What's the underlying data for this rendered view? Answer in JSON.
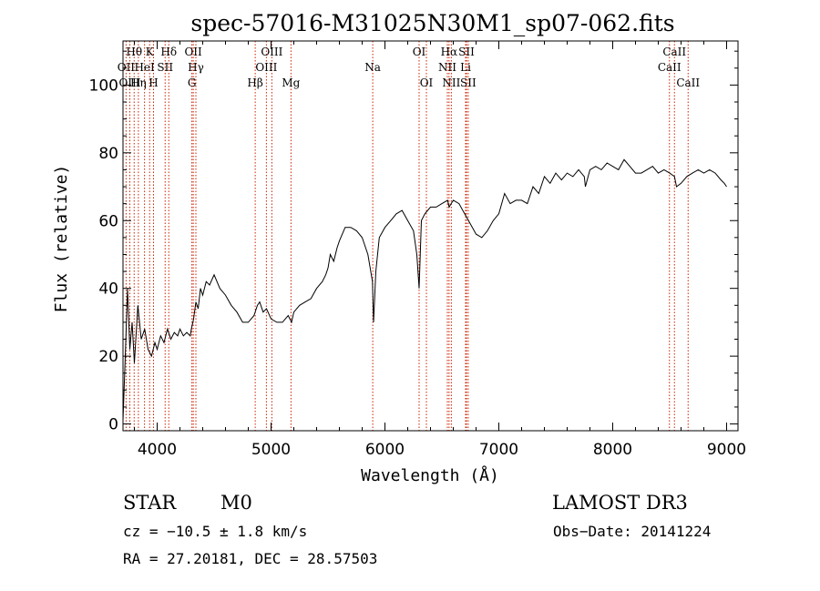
{
  "chart_data": {
    "type": "line",
    "title": "spec-57016-M31025N30M1_sp07-062.fits",
    "xlabel": "Wavelength (Å)",
    "ylabel": "Flux (relative)",
    "xlim": [
      3700,
      9100
    ],
    "ylim": [
      -2,
      113
    ],
    "xticks": [
      4000,
      5000,
      6000,
      7000,
      8000,
      9000
    ],
    "yticks": [
      0,
      20,
      40,
      60,
      80,
      100
    ],
    "grid": false,
    "series": [
      {
        "name": "spectrum",
        "x": [
          3700,
          3720,
          3740,
          3760,
          3780,
          3800,
          3830,
          3860,
          3890,
          3920,
          3950,
          3980,
          4000,
          4030,
          4060,
          4090,
          4120,
          4150,
          4180,
          4200,
          4230,
          4260,
          4290,
          4300,
          4320,
          4340,
          4360,
          4380,
          4400,
          4430,
          4460,
          4500,
          4550,
          4600,
          4650,
          4700,
          4750,
          4800,
          4850,
          4880,
          4900,
          4930,
          4960,
          5000,
          5050,
          5100,
          5150,
          5180,
          5200,
          5250,
          5300,
          5350,
          5400,
          5450,
          5480,
          5500,
          5520,
          5550,
          5580,
          5600,
          5650,
          5700,
          5750,
          5800,
          5850,
          5890,
          5900,
          5920,
          5950,
          6000,
          6050,
          6100,
          6150,
          6200,
          6250,
          6280,
          6300,
          6320,
          6350,
          6400,
          6450,
          6500,
          6550,
          6563,
          6600,
          6650,
          6700,
          6750,
          6800,
          6850,
          6900,
          6950,
          7000,
          7050,
          7100,
          7150,
          7200,
          7250,
          7300,
          7350,
          7400,
          7450,
          7500,
          7550,
          7600,
          7650,
          7700,
          7750,
          7760,
          7800,
          7850,
          7900,
          7950,
          8000,
          8050,
          8100,
          8150,
          8200,
          8250,
          8300,
          8350,
          8400,
          8450,
          8500,
          8542,
          8560,
          8600,
          8650,
          8700,
          8750,
          8800,
          8850,
          8900,
          8950,
          8980,
          9000
        ],
        "values": [
          1,
          20,
          40,
          22,
          30,
          18,
          35,
          25,
          28,
          22,
          20,
          24,
          22,
          26,
          24,
          28,
          25,
          27,
          26,
          28,
          26,
          27,
          26,
          28,
          31,
          36,
          34,
          40,
          38,
          42,
          41,
          44,
          40,
          38,
          35,
          33,
          30,
          30,
          32,
          35,
          36,
          33,
          34,
          31,
          30,
          30,
          32,
          30,
          33,
          35,
          36,
          37,
          40,
          42,
          44,
          46,
          50,
          48,
          52,
          54,
          58,
          58,
          57,
          55,
          50,
          42,
          30,
          45,
          55,
          58,
          60,
          62,
          63,
          60,
          57,
          50,
          40,
          60,
          62,
          64,
          64,
          65,
          66,
          64,
          66,
          65,
          62,
          59,
          56,
          55,
          57,
          60,
          62,
          68,
          65,
          66,
          66,
          65,
          70,
          68,
          73,
          71,
          74,
          72,
          74,
          73,
          75,
          73,
          70,
          75,
          76,
          75,
          77,
          76,
          75,
          78,
          76,
          74,
          74,
          75,
          76,
          74,
          75,
          74,
          73,
          70,
          71,
          73,
          74,
          75,
          74,
          75,
          74,
          72,
          71,
          70
        ]
      }
    ],
    "lines": [
      {
        "name": "OII",
        "x": 3727,
        "row": 1
      },
      {
        "name": "Hθ",
        "x": 3798,
        "row": 0
      },
      {
        "name": "OIII",
        "x": 3760,
        "row": 2
      },
      {
        "name": "Hη",
        "x": 3835,
        "row": 2
      },
      {
        "name": "HeI",
        "x": 3889,
        "row": 1
      },
      {
        "name": "K",
        "x": 3934,
        "row": 0
      },
      {
        "name": "SII",
        "x": 4070,
        "row": 1
      },
      {
        "name": "H",
        "x": 3968,
        "row": 2
      },
      {
        "name": "Hδ",
        "x": 4102,
        "row": 0
      },
      {
        "name": "OII",
        "x": 4317,
        "row": 0
      },
      {
        "name": "Hγ",
        "x": 4340,
        "row": 1
      },
      {
        "name": "G",
        "x": 4305,
        "row": 2
      },
      {
        "name": "Hβ",
        "x": 4861,
        "row": 2
      },
      {
        "name": "OIII",
        "x": 4959,
        "row": 1
      },
      {
        "name": "OIII",
        "x": 5007,
        "row": 0
      },
      {
        "name": "Mg",
        "x": 5175,
        "row": 2
      },
      {
        "name": "Na",
        "x": 5893,
        "row": 1
      },
      {
        "name": "OI",
        "x": 6300,
        "row": 0
      },
      {
        "name": "OI",
        "x": 6364,
        "row": 2
      },
      {
        "name": "Hα",
        "x": 6563,
        "row": 0
      },
      {
        "name": "NII",
        "x": 6548,
        "row": 1
      },
      {
        "name": "NII",
        "x": 6583,
        "row": 2
      },
      {
        "name": "SII",
        "x": 6716,
        "row": 0
      },
      {
        "name": "Li",
        "x": 6708,
        "row": 1
      },
      {
        "name": "SII",
        "x": 6731,
        "row": 2
      },
      {
        "name": "CaII",
        "x": 8542,
        "row": 0
      },
      {
        "name": "CaII",
        "x": 8498,
        "row": 1
      },
      {
        "name": "CaII",
        "x": 8662,
        "row": 2
      }
    ]
  },
  "info": {
    "object_type": "STAR",
    "subclass": "M0",
    "survey": "LAMOST DR3",
    "cz": "cz = −10.5 ± 1.8 km/s",
    "obs_date": "Obs−Date: 20141224",
    "coords": "RA =  27.20181, DEC =  28.57503"
  },
  "colors": {
    "line_marker": "#cc2200",
    "spectrum": "#000000",
    "axis": "#000000"
  }
}
